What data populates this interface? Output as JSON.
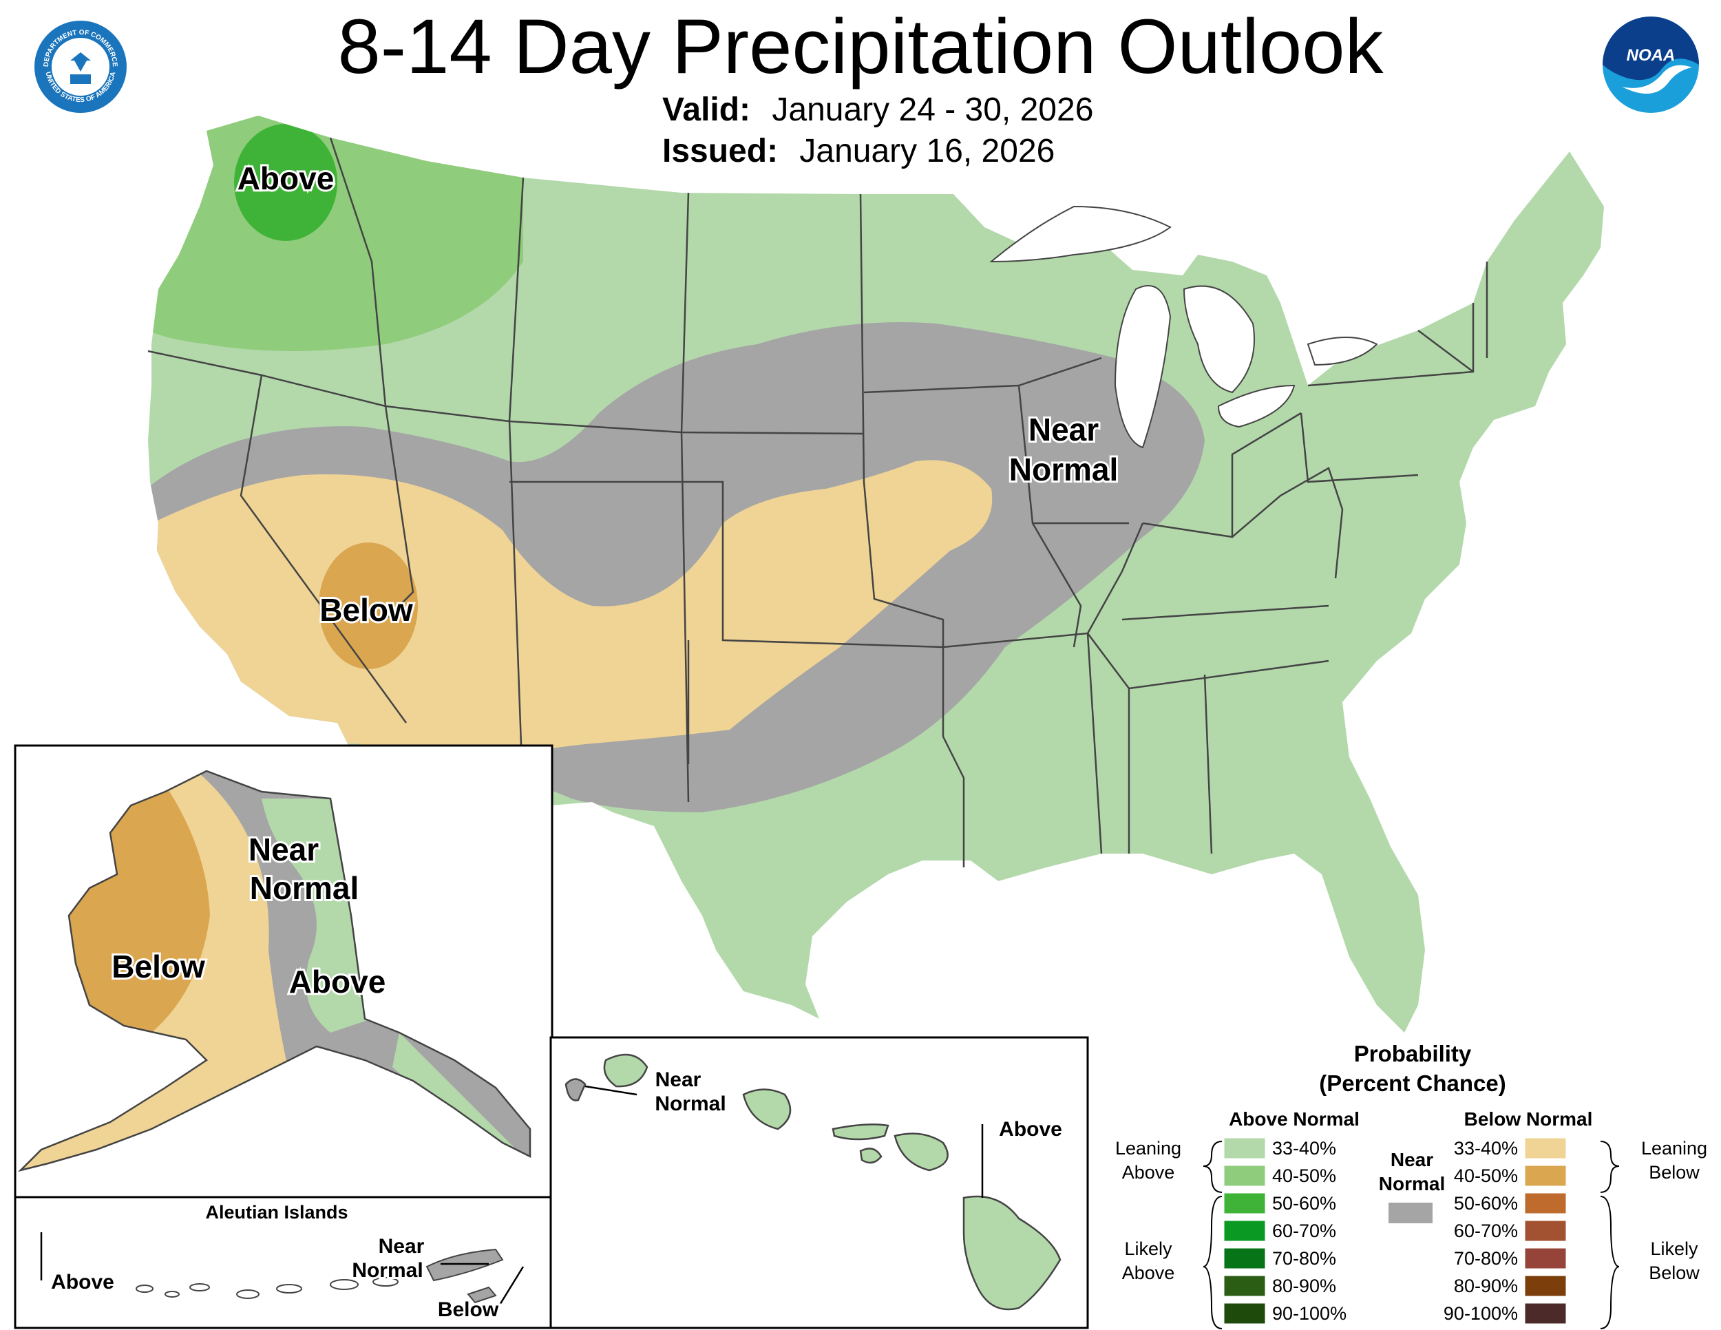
{
  "title": "8-14 Day Precipitation Outlook",
  "valid_label": "Valid:",
  "valid_value": "January 24 - 30, 2026",
  "issued_label": "Issued:",
  "issued_value": "January 16, 2026",
  "logos": {
    "left": "Department of Commerce seal",
    "left_text": [
      "DEPARTMENT OF COMMERCE",
      "UNITED STATES OF AMERICA"
    ],
    "right": "NOAA logo",
    "right_text": "NOAA"
  },
  "conus_labels": {
    "above": "Above",
    "below": "Below",
    "near_line1": "Near",
    "near_line2": "Normal"
  },
  "alaska_labels": {
    "near_line1": "Near",
    "near_line2": "Normal",
    "below": "Below",
    "above": "Above"
  },
  "aleutian": {
    "title": "Aleutian Islands",
    "above": "Above",
    "near_line1": "Near",
    "near_line2": "Normal",
    "below": "Below"
  },
  "hawaii_labels": {
    "near_line1": "Near",
    "near_line2": "Normal",
    "above": "Above"
  },
  "legend": {
    "title_line1": "Probability",
    "title_line2": "(Percent Chance)",
    "above_header": "Above Normal",
    "below_header": "Below Normal",
    "near_line1": "Near",
    "near_line2": "Normal",
    "leaning_above": [
      "Leaning",
      "Above"
    ],
    "likely_above": [
      "Likely",
      "Above"
    ],
    "leaning_below": [
      "Leaning",
      "Below"
    ],
    "likely_below": [
      "Likely",
      "Below"
    ],
    "ranges": [
      "33-40%",
      "40-50%",
      "50-60%",
      "60-70%",
      "70-80%",
      "80-90%",
      "90-100%"
    ],
    "above_colors": [
      "#b3d9ab",
      "#8fcc7c",
      "#3fb338",
      "#0a9a24",
      "#077517",
      "#2b5e14",
      "#1e4a0b"
    ],
    "below_colors": [
      "#f0d495",
      "#dba650",
      "#c06b2e",
      "#a35231",
      "#96433a",
      "#7c3e0b",
      "#4c2a2a"
    ],
    "near_color": "#a5a5a5"
  }
}
